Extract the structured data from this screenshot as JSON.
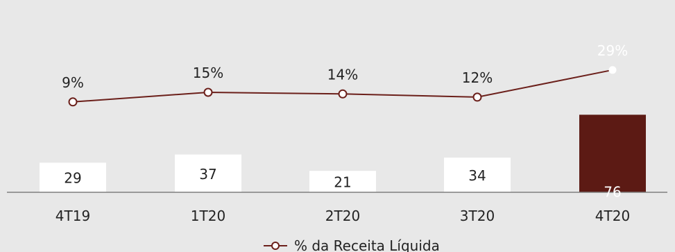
{
  "colors": {
    "background": "#e8e8e8",
    "bar_default": "#ffffff",
    "bar_highlight": "#5c1a14",
    "line": "#6b1f1a",
    "axis": "#7f7f7f",
    "text": "#222222",
    "text_on_highlight": "#ffffff"
  },
  "chart_data": {
    "type": "bar",
    "categories": [
      "4T19",
      "1T20",
      "2T20",
      "3T20",
      "4T20"
    ],
    "series": [
      {
        "kind": "bar",
        "values": [
          29,
          37,
          21,
          34,
          76
        ],
        "labels": [
          "29",
          "37",
          "21",
          "34",
          "76"
        ],
        "highlight_index": 4
      },
      {
        "kind": "line",
        "name": "% da Receita Líquida",
        "values": [
          9,
          15,
          14,
          12,
          29
        ],
        "labels": [
          "9%",
          "15%",
          "14%",
          "12%",
          "29%"
        ],
        "marker": "open-circle"
      }
    ],
    "legend": {
      "entry": "% da Receita Líquida",
      "placement": "bottom-center"
    },
    "grid": false
  }
}
